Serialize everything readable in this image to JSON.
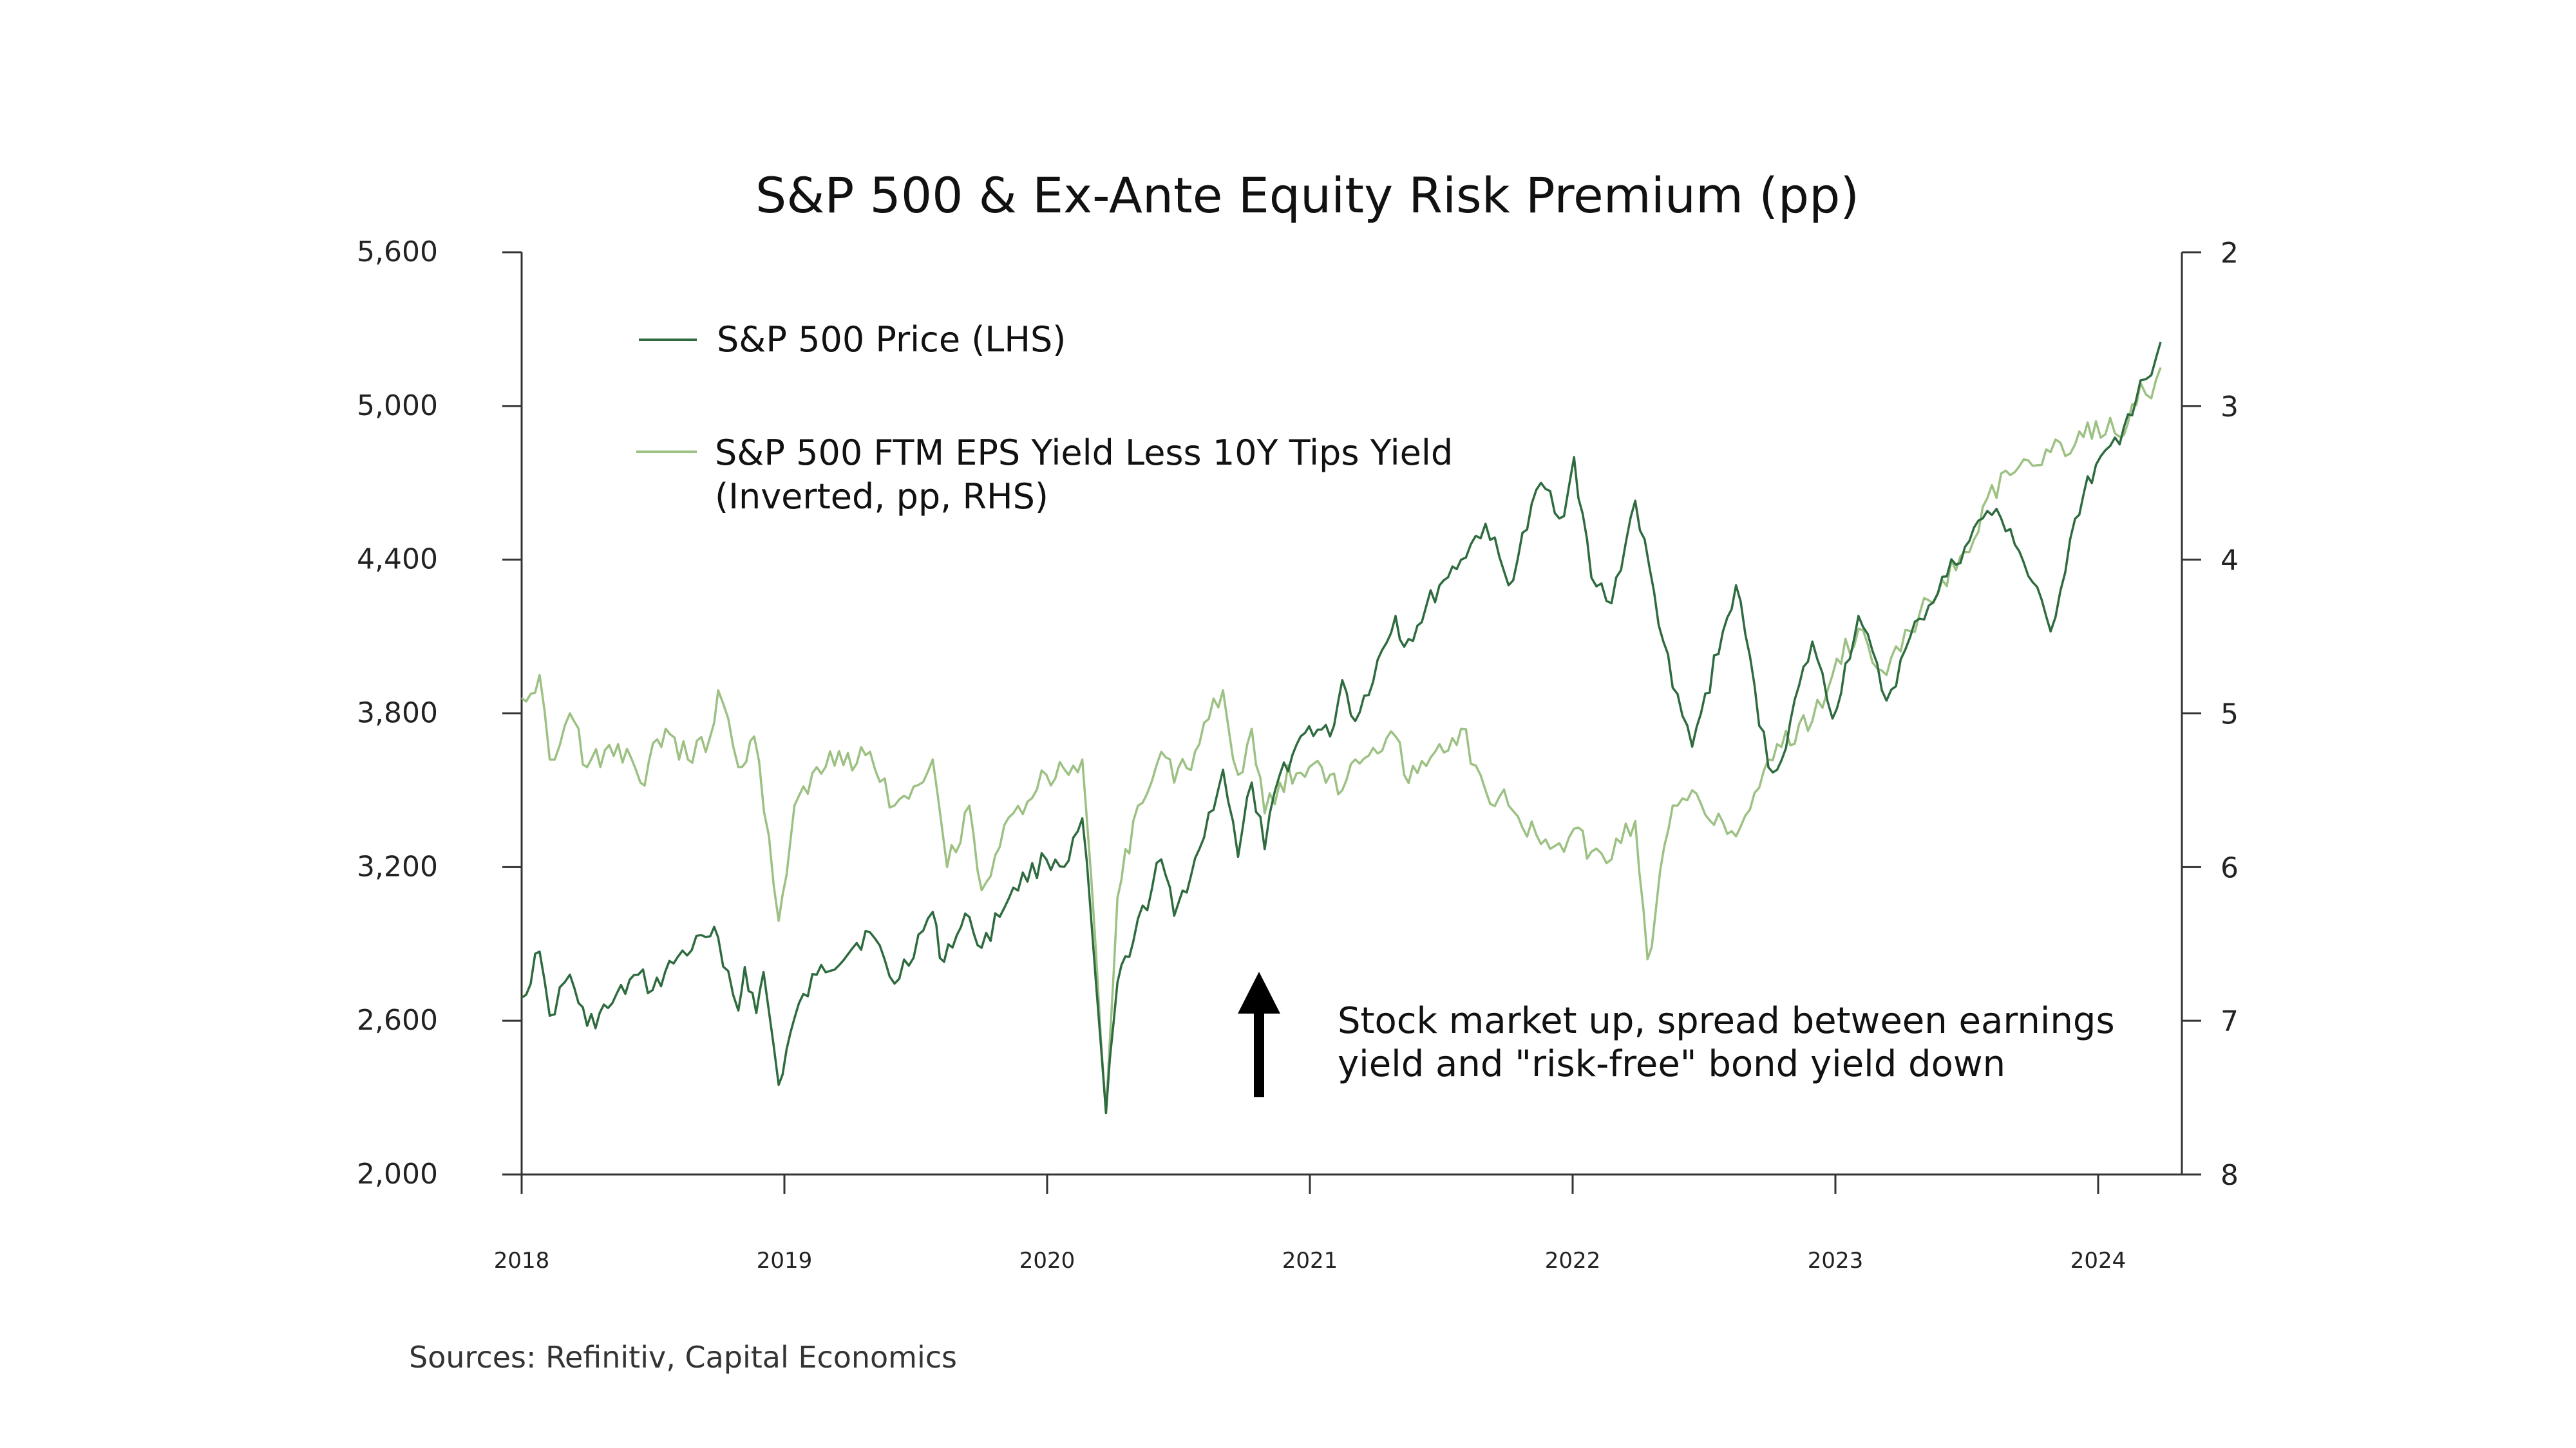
{
  "chart_data": {
    "type": "line",
    "title": "S&P 500 & Ex-Ante Equity Risk Premium (pp)",
    "source": "Sources: Refinitiv, Capital Economics",
    "x_ticks": [
      "2018",
      "2019",
      "2020",
      "2021",
      "2022",
      "2023",
      "2024"
    ],
    "y_left": {
      "min": 2000,
      "max": 5600,
      "ticks": [
        "2,000",
        "2,600",
        "3,200",
        "3,800",
        "4,400",
        "5,000",
        "5,600"
      ]
    },
    "y_right": {
      "min": 2,
      "max": 8,
      "inverted": true,
      "ticks": [
        "2",
        "3",
        "4",
        "5",
        "6",
        "7",
        "8"
      ]
    },
    "legend": [
      {
        "label": "S&P 500 Price (LHS)"
      },
      {
        "label_lines": [
          "S&P 500 FTM EPS Yield Less 10Y Tips Yield",
          "(Inverted, pp, RHS)"
        ]
      }
    ],
    "annotation": {
      "lines": [
        "Stock market up, spread between earnings",
        "yield and \"risk-free\" bond yield down"
      ]
    },
    "colors": {
      "sp500": "#2e6b3f",
      "erp": "#9cc183",
      "arrow": "#000000"
    },
    "series": [
      {
        "name": "S&P 500 Price (LHS)",
        "axis": "left",
        "points": [
          [
            "2018-01-01",
            2690
          ],
          [
            "2018-01-26",
            2870
          ],
          [
            "2018-02-09",
            2620
          ],
          [
            "2018-03-09",
            2780
          ],
          [
            "2018-04-02",
            2580
          ],
          [
            "2018-05-01",
            2650
          ],
          [
            "2018-06-12",
            2780
          ],
          [
            "2018-07-02",
            2720
          ],
          [
            "2018-08-06",
            2850
          ],
          [
            "2018-09-20",
            2930
          ],
          [
            "2018-10-01",
            2925
          ],
          [
            "2018-10-29",
            2640
          ],
          [
            "2018-11-07",
            2810
          ],
          [
            "2018-11-23",
            2630
          ],
          [
            "2018-12-03",
            2790
          ],
          [
            "2018-12-24",
            2350
          ],
          [
            "2019-01-15",
            2610
          ],
          [
            "2019-02-15",
            2780
          ],
          [
            "2019-04-30",
            2945
          ],
          [
            "2019-06-03",
            2745
          ],
          [
            "2019-07-26",
            3025
          ],
          [
            "2019-08-05",
            2845
          ],
          [
            "2019-09-15",
            3005
          ],
          [
            "2019-10-02",
            2885
          ],
          [
            "2019-11-15",
            3120
          ],
          [
            "2019-12-31",
            3230
          ],
          [
            "2020-01-31",
            3225
          ],
          [
            "2020-02-19",
            3390
          ],
          [
            "2020-03-09",
            2750
          ],
          [
            "2020-03-23",
            2240
          ],
          [
            "2020-04-08",
            2750
          ],
          [
            "2020-04-30",
            2910
          ],
          [
            "2020-06-08",
            3230
          ],
          [
            "2020-06-26",
            3010
          ],
          [
            "2020-07-31",
            3270
          ],
          [
            "2020-09-02",
            3580
          ],
          [
            "2020-09-23",
            3240
          ],
          [
            "2020-10-12",
            3530
          ],
          [
            "2020-10-30",
            3270
          ],
          [
            "2020-11-20",
            3560
          ],
          [
            "2020-12-31",
            3750
          ],
          [
            "2021-01-29",
            3710
          ],
          [
            "2021-02-15",
            3930
          ],
          [
            "2021-03-05",
            3770
          ],
          [
            "2021-04-30",
            4180
          ],
          [
            "2021-05-12",
            4060
          ],
          [
            "2021-06-30",
            4300
          ],
          [
            "2021-07-30",
            4400
          ],
          [
            "2021-09-02",
            4540
          ],
          [
            "2021-10-04",
            4300
          ],
          [
            "2021-11-18",
            4700
          ],
          [
            "2021-12-20",
            4570
          ],
          [
            "2022-01-03",
            4800
          ],
          [
            "2022-01-27",
            4330
          ],
          [
            "2022-02-24",
            4230
          ],
          [
            "2022-03-29",
            4630
          ],
          [
            "2022-05-20",
            3900
          ],
          [
            "2022-06-16",
            3670
          ],
          [
            "2022-08-16",
            4300
          ],
          [
            "2022-09-30",
            3590
          ],
          [
            "2022-10-12",
            3580
          ],
          [
            "2022-11-30",
            4080
          ],
          [
            "2022-12-28",
            3780
          ],
          [
            "2023-02-02",
            4180
          ],
          [
            "2023-03-13",
            3850
          ],
          [
            "2023-04-28",
            4170
          ],
          [
            "2023-06-30",
            4450
          ],
          [
            "2023-07-31",
            4590
          ],
          [
            "2023-09-01",
            4520
          ],
          [
            "2023-10-27",
            4120
          ],
          [
            "2023-11-30",
            4560
          ],
          [
            "2023-12-29",
            4770
          ],
          [
            "2024-01-31",
            4850
          ],
          [
            "2024-02-29",
            5100
          ],
          [
            "2024-03-15",
            5120
          ],
          [
            "2024-03-28",
            5250
          ]
        ]
      },
      {
        "name": "S&P 500 FTM EPS Yield Less 10Y Tips Yield (Inverted, pp, RHS)",
        "axis": "right",
        "points": [
          [
            "2018-01-01",
            4.9
          ],
          [
            "2018-01-26",
            4.75
          ],
          [
            "2018-02-09",
            5.3
          ],
          [
            "2018-03-09",
            5.0
          ],
          [
            "2018-04-02",
            5.35
          ],
          [
            "2018-05-15",
            5.2
          ],
          [
            "2018-06-15",
            5.45
          ],
          [
            "2018-07-20",
            5.1
          ],
          [
            "2018-08-20",
            5.3
          ],
          [
            "2018-09-20",
            5.15
          ],
          [
            "2018-10-01",
            4.85
          ],
          [
            "2018-10-29",
            5.35
          ],
          [
            "2018-11-20",
            5.15
          ],
          [
            "2018-12-24",
            6.35
          ],
          [
            "2019-01-15",
            5.6
          ],
          [
            "2019-02-15",
            5.35
          ],
          [
            "2019-04-30",
            5.25
          ],
          [
            "2019-06-03",
            5.6
          ],
          [
            "2019-07-26",
            5.3
          ],
          [
            "2019-08-15",
            6.0
          ],
          [
            "2019-09-15",
            5.6
          ],
          [
            "2019-10-02",
            6.15
          ],
          [
            "2019-11-15",
            5.65
          ],
          [
            "2019-12-31",
            5.4
          ],
          [
            "2020-01-31",
            5.4
          ],
          [
            "2020-02-19",
            5.3
          ],
          [
            "2020-03-09",
            6.55
          ],
          [
            "2020-03-23",
            7.6
          ],
          [
            "2020-04-08",
            6.2
          ],
          [
            "2020-04-30",
            5.7
          ],
          [
            "2020-06-08",
            5.25
          ],
          [
            "2020-06-26",
            5.45
          ],
          [
            "2020-07-31",
            5.2
          ],
          [
            "2020-09-02",
            4.85
          ],
          [
            "2020-09-23",
            5.4
          ],
          [
            "2020-10-12",
            5.1
          ],
          [
            "2020-10-30",
            5.65
          ],
          [
            "2020-11-20",
            5.45
          ],
          [
            "2020-12-31",
            5.35
          ],
          [
            "2021-01-29",
            5.4
          ],
          [
            "2021-02-15",
            5.5
          ],
          [
            "2021-03-05",
            5.3
          ],
          [
            "2021-04-30",
            5.15
          ],
          [
            "2021-05-12",
            5.4
          ],
          [
            "2021-06-30",
            5.2
          ],
          [
            "2021-07-30",
            5.1
          ],
          [
            "2021-09-02",
            5.5
          ],
          [
            "2021-10-04",
            5.6
          ],
          [
            "2021-11-18",
            5.85
          ],
          [
            "2021-12-20",
            5.9
          ],
          [
            "2022-01-03",
            5.75
          ],
          [
            "2022-01-27",
            5.9
          ],
          [
            "2022-02-24",
            5.95
          ],
          [
            "2022-03-29",
            5.7
          ],
          [
            "2022-04-15",
            6.6
          ],
          [
            "2022-05-20",
            5.6
          ],
          [
            "2022-06-16",
            5.5
          ],
          [
            "2022-08-16",
            5.8
          ],
          [
            "2022-09-30",
            5.3
          ],
          [
            "2022-10-12",
            5.2
          ],
          [
            "2022-11-30",
            5.05
          ],
          [
            "2022-12-28",
            4.75
          ],
          [
            "2023-02-02",
            4.45
          ],
          [
            "2023-03-13",
            4.75
          ],
          [
            "2023-04-28",
            4.35
          ],
          [
            "2023-06-30",
            3.95
          ],
          [
            "2023-07-31",
            3.6
          ],
          [
            "2023-09-01",
            3.45
          ],
          [
            "2023-10-27",
            3.3
          ],
          [
            "2023-11-30",
            3.25
          ],
          [
            "2023-12-29",
            3.1
          ],
          [
            "2024-01-31",
            3.2
          ],
          [
            "2024-02-29",
            2.85
          ],
          [
            "2024-03-15",
            2.95
          ],
          [
            "2024-03-28",
            2.75
          ]
        ]
      }
    ]
  }
}
